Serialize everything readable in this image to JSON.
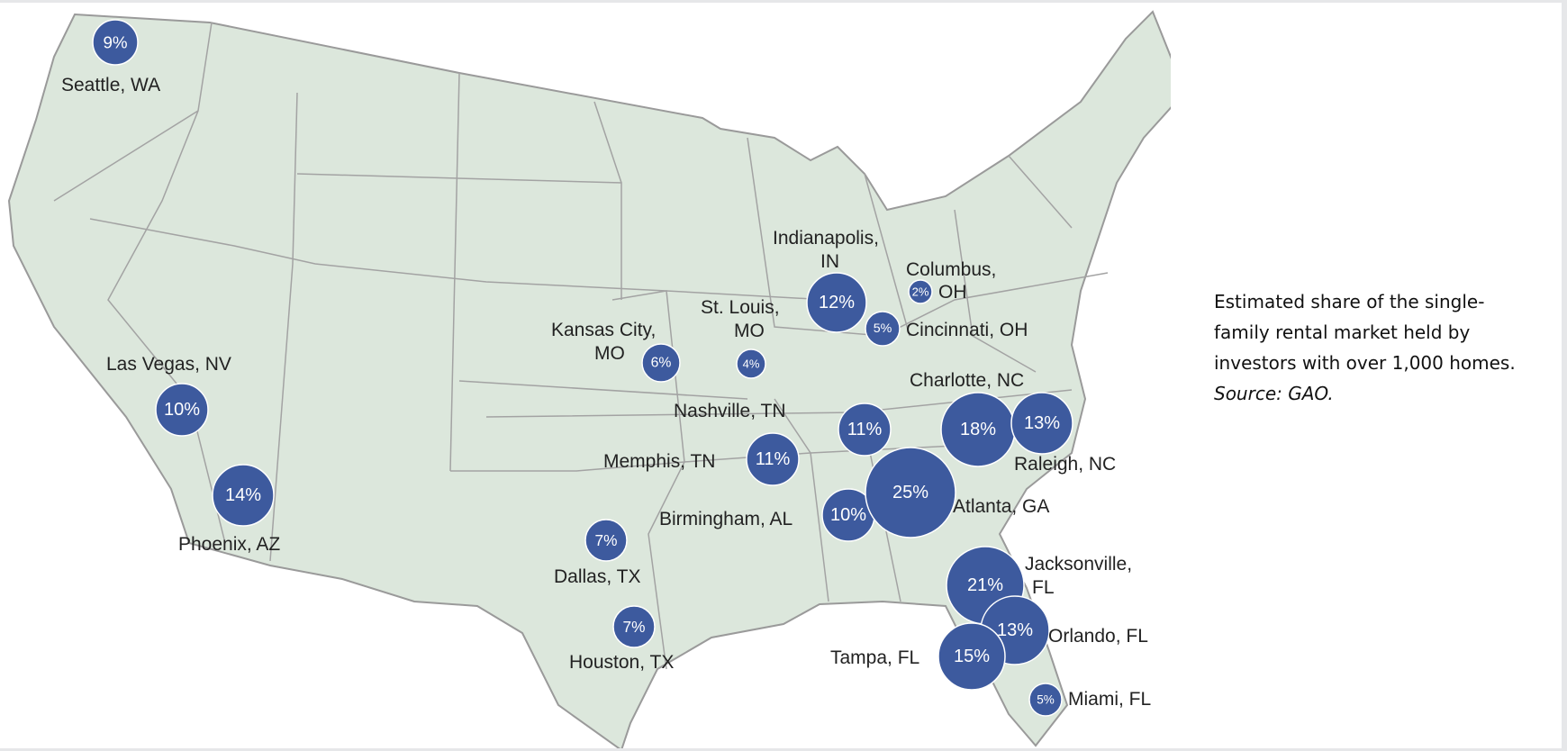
{
  "caption": {
    "text": "Estimated share of the single-family rental market held by investors with over 1,000 homes.",
    "source": "Source: GAO."
  },
  "colors": {
    "bubble": "#3d5a9e",
    "land": "#dce7dc",
    "border": "#9a9a9a"
  },
  "cities": [
    {
      "name": "Seattle, WA",
      "pct": "9%",
      "value": 9
    },
    {
      "name": "Las Vegas, NV",
      "pct": "10%",
      "value": 10
    },
    {
      "name": "Phoenix, AZ",
      "pct": "14%",
      "value": 14
    },
    {
      "name": "Kansas City, MO",
      "pct": "6%",
      "value": 6
    },
    {
      "name": "St. Louis, MO",
      "pct": "4%",
      "value": 4
    },
    {
      "name": "Indianapolis, IN",
      "pct": "12%",
      "value": 12
    },
    {
      "name": "Columbus, OH",
      "pct": "2%",
      "value": 2
    },
    {
      "name": "Cincinnati, OH",
      "pct": "5%",
      "value": 5
    },
    {
      "name": "Nashville, TN",
      "pct": "11%",
      "value": 11
    },
    {
      "name": "Memphis, TN",
      "pct": "11%",
      "value": 11
    },
    {
      "name": "Birmingham, AL",
      "pct": "10%",
      "value": 10
    },
    {
      "name": "Atlanta, GA",
      "pct": "25%",
      "value": 25
    },
    {
      "name": "Charlotte, NC",
      "pct": "18%",
      "value": 18
    },
    {
      "name": "Raleigh, NC",
      "pct": "13%",
      "value": 13
    },
    {
      "name": "Dallas, TX",
      "pct": "7%",
      "value": 7
    },
    {
      "name": "Houston, TX",
      "pct": "7%",
      "value": 7
    },
    {
      "name": "Jacksonville, FL",
      "pct": "21%",
      "value": 21
    },
    {
      "name": "Orlando, FL",
      "pct": "13%",
      "value": 13
    },
    {
      "name": "Tampa, FL",
      "pct": "15%",
      "value": 15
    },
    {
      "name": "Miami, FL",
      "pct": "5%",
      "value": 5
    }
  ]
}
